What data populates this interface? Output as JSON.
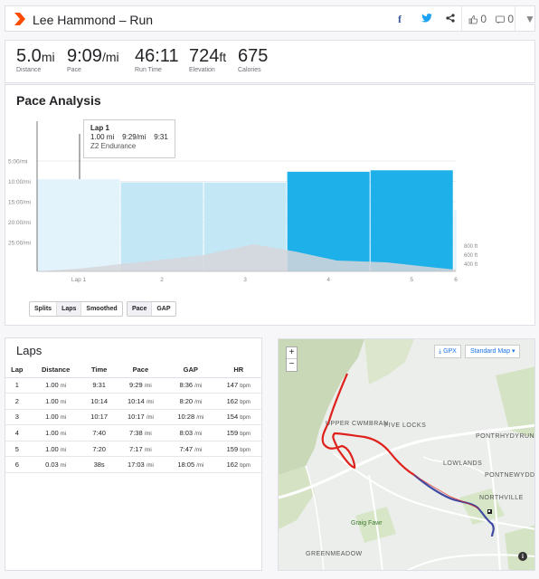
{
  "header": {
    "title": "Lee Hammond – Run",
    "kudos_count": "0",
    "comments_count": "0",
    "icons": [
      "strava-logo-icon",
      "facebook-icon",
      "twitter-icon",
      "share-icon",
      "kudos-icon",
      "comment-icon",
      "dropdown-icon"
    ]
  },
  "stats": [
    {
      "value": "5.0",
      "unit": "mi",
      "label": "Distance"
    },
    {
      "value": "9:09",
      "unit": "/mi",
      "label": "Pace"
    },
    {
      "value": "46:11",
      "unit": "",
      "label": "Run Time"
    },
    {
      "value": "724",
      "unit": "ft",
      "label": "Elevation"
    },
    {
      "value": "675",
      "unit": "",
      "label": "Calories"
    }
  ],
  "pace_analysis": {
    "title": "Pace Analysis",
    "tooltip": {
      "lap": "Lap 1",
      "distance": "1.00 mi",
      "pace": "9:29/mi",
      "time": "9:31",
      "zone": "Z2 Endurance"
    },
    "tabs_left": [
      "Splits",
      "Laps",
      "Smoothed"
    ],
    "tabs_right": [
      "Pace",
      "GAP"
    ],
    "active_left": "Laps",
    "active_right": "Pace"
  },
  "chart_data": {
    "type": "bar",
    "title": "Pace Analysis",
    "y_ticks": [
      "5:00/mi",
      "10:00/mi",
      "15:00/mi",
      "20:00/mi",
      "25:00/mi"
    ],
    "x_ticks": [
      "Lap 1",
      "2",
      "3",
      "4",
      "5",
      "6"
    ],
    "elevation_ticks": [
      "800 ft",
      "600 ft",
      "400 ft"
    ],
    "ylim_pace_min_per_mi": [
      0,
      32
    ],
    "series": [
      {
        "lap": 1,
        "distance_mi": 1.0,
        "pace": "9:29",
        "pace_min": 9.48
      },
      {
        "lap": 2,
        "distance_mi": 1.0,
        "pace": "10:14",
        "pace_min": 10.23
      },
      {
        "lap": 3,
        "distance_mi": 1.0,
        "pace": "10:17",
        "pace_min": 10.28
      },
      {
        "lap": 4,
        "distance_mi": 1.0,
        "pace": "7:38",
        "pace_min": 7.63
      },
      {
        "lap": 5,
        "distance_mi": 1.0,
        "pace": "7:17",
        "pace_min": 7.28
      },
      {
        "lap": 6,
        "distance_mi": 0.03,
        "pace": "17:03",
        "pace_min": 17.05
      }
    ],
    "colors": {
      "slow": "#e3f3fb",
      "mid": "#c4e7f6",
      "fast": "#1eb0e8",
      "elevation": "#d6d6db"
    }
  },
  "laps": {
    "title": "Laps",
    "columns": [
      "Lap",
      "Distance",
      "Time",
      "Pace",
      "GAP",
      "HR"
    ],
    "rows": [
      {
        "lap": "1",
        "distance": "1.00",
        "dist_unit": "mi",
        "time": "9:31",
        "pace": "9:29",
        "gap": "8:36",
        "hr": "147"
      },
      {
        "lap": "2",
        "distance": "1.00",
        "dist_unit": "mi",
        "time": "10:14",
        "pace": "10:14",
        "gap": "8:20",
        "hr": "162"
      },
      {
        "lap": "3",
        "distance": "1.00",
        "dist_unit": "mi",
        "time": "10:17",
        "pace": "10:17",
        "gap": "10:28",
        "hr": "154"
      },
      {
        "lap": "4",
        "distance": "1.00",
        "dist_unit": "mi",
        "time": "7:40",
        "pace": "7:38",
        "gap": "8:03",
        "hr": "159"
      },
      {
        "lap": "5",
        "distance": "1.00",
        "dist_unit": "mi",
        "time": "7:20",
        "pace": "7:17",
        "gap": "7:47",
        "hr": "159"
      },
      {
        "lap": "6",
        "distance": "0.03",
        "dist_unit": "mi",
        "time": "38s",
        "pace": "17:03",
        "gap": "18:05",
        "hr": "162"
      }
    ],
    "pace_unit": "/mi",
    "hr_unit": "bpm"
  },
  "map": {
    "zoom_in": "+",
    "zoom_out": "−",
    "gpx_label": "GPX",
    "map_type": "Standard Map",
    "info": "i",
    "labels": [
      "UPPER CWMBRAN",
      "FIVE LOCKS",
      "PONTRHYDYRUN",
      "LOWLANDS",
      "PONTNEWYDD",
      "NORTHVILLE",
      "Graig Fawr",
      "GREENMEADOW"
    ]
  }
}
